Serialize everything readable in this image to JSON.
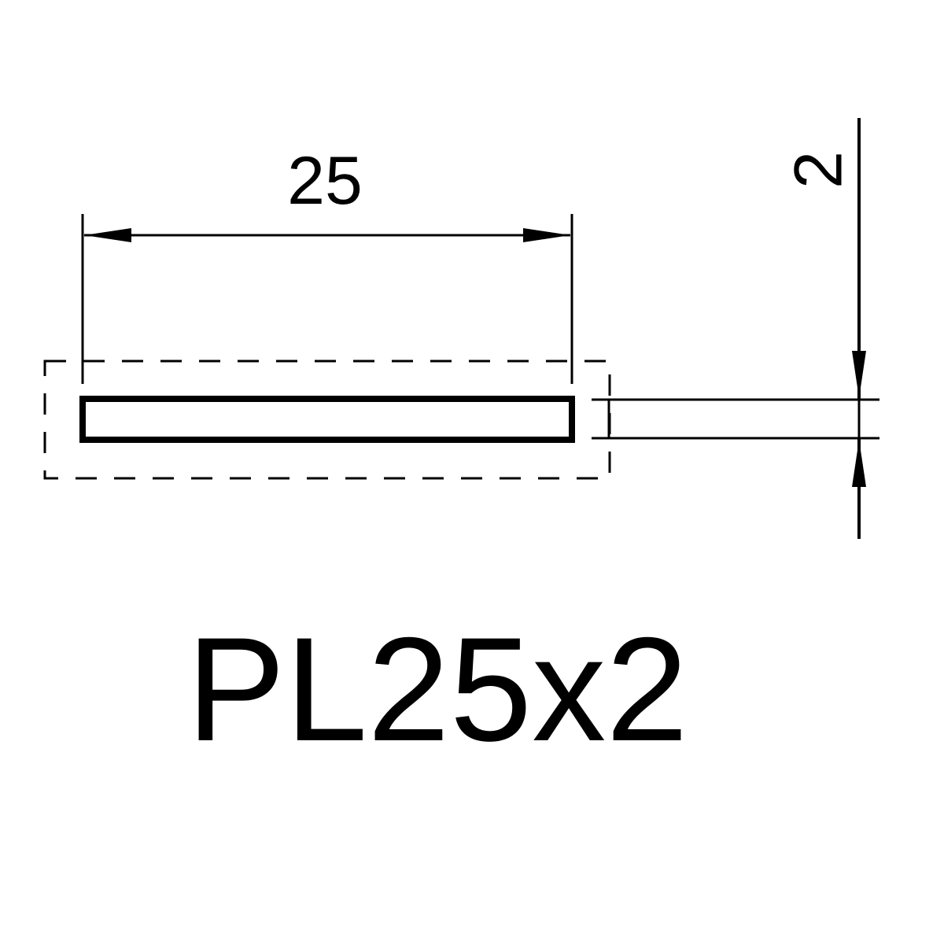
{
  "drawing": {
    "width_dimension": "25",
    "thickness_dimension": "2",
    "section_label": "PL25x2"
  }
}
